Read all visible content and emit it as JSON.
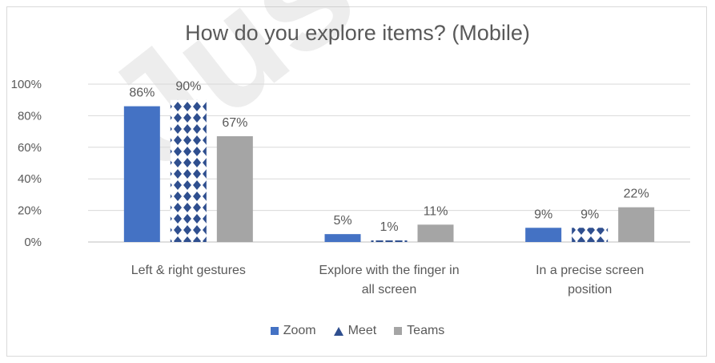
{
  "colors": {
    "zoom": "#4472c4",
    "meet": "#2f4f8f",
    "teams": "#a5a5a5",
    "grid": "#d9d9d9",
    "text": "#595959"
  },
  "watermark": "Just Acce",
  "chart_data": {
    "type": "bar",
    "title": "How do you explore  items? (Mobile)",
    "xlabel": "",
    "ylabel": "",
    "ylim": [
      0,
      100
    ],
    "yticks": [
      "0%",
      "20%",
      "40%",
      "60%",
      "80%",
      "100%"
    ],
    "categories": [
      [
        "Left & right gestures"
      ],
      [
        "Explore with the finger in",
        "all screen"
      ],
      [
        "In a precise screen",
        "position"
      ]
    ],
    "series": [
      {
        "name": "Zoom",
        "values": [
          86,
          5,
          9
        ],
        "labels": [
          "86%",
          "5%",
          "9%"
        ],
        "pattern": "solid"
      },
      {
        "name": "Meet",
        "values": [
          90,
          1,
          9
        ],
        "labels": [
          "90%",
          "1%",
          "9%"
        ],
        "pattern": "diamonds"
      },
      {
        "name": "Teams",
        "values": [
          67,
          11,
          22
        ],
        "labels": [
          "67%",
          "11%",
          "22%"
        ],
        "pattern": "solid"
      }
    ],
    "grid": true,
    "legend": "bottom"
  }
}
